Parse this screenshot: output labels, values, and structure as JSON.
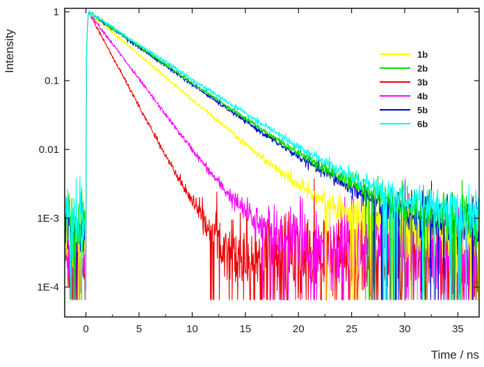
{
  "chart_data": {
    "type": "line",
    "title": "",
    "xlabel": "Time / ns",
    "ylabel": "Intensity",
    "xlim": [
      -2,
      37
    ],
    "ylim": [
      5e-05,
      1
    ],
    "yscale": "log",
    "grid": false,
    "legend_position": "top-right",
    "x_ticks": [
      0,
      5,
      10,
      15,
      20,
      25,
      30,
      35
    ],
    "x_tick_labels": [
      "0",
      "5",
      "10",
      "15",
      "20",
      "25",
      "30",
      "35"
    ],
    "y_ticks": [
      1,
      0.1,
      0.01,
      0.001,
      0.0001
    ],
    "y_tick_labels": [
      "1",
      "0.1",
      "0.01",
      "1E-3",
      "1E-4"
    ],
    "series": [
      {
        "name": "1b",
        "color": "#ffff00",
        "tau": 3.3,
        "floor": 0.0006,
        "noise": 0.5
      },
      {
        "name": "2b",
        "color": "#00dd00",
        "tau": 4.1,
        "floor": 0.0009,
        "noise": 0.5
      },
      {
        "name": "3b",
        "color": "#ee0000",
        "tau": 1.5,
        "floor": 0.00025,
        "noise": 0.8
      },
      {
        "name": "4b",
        "color": "#ff00ff",
        "tau": 2.1,
        "floor": 0.00035,
        "noise": 0.7
      },
      {
        "name": "5b",
        "color": "#0000cc",
        "tau": 4.0,
        "floor": 0.0007,
        "noise": 0.5
      },
      {
        "name": "6b",
        "color": "#00ffff",
        "tau": 4.3,
        "floor": 0.0009,
        "noise": 0.45
      }
    ]
  }
}
